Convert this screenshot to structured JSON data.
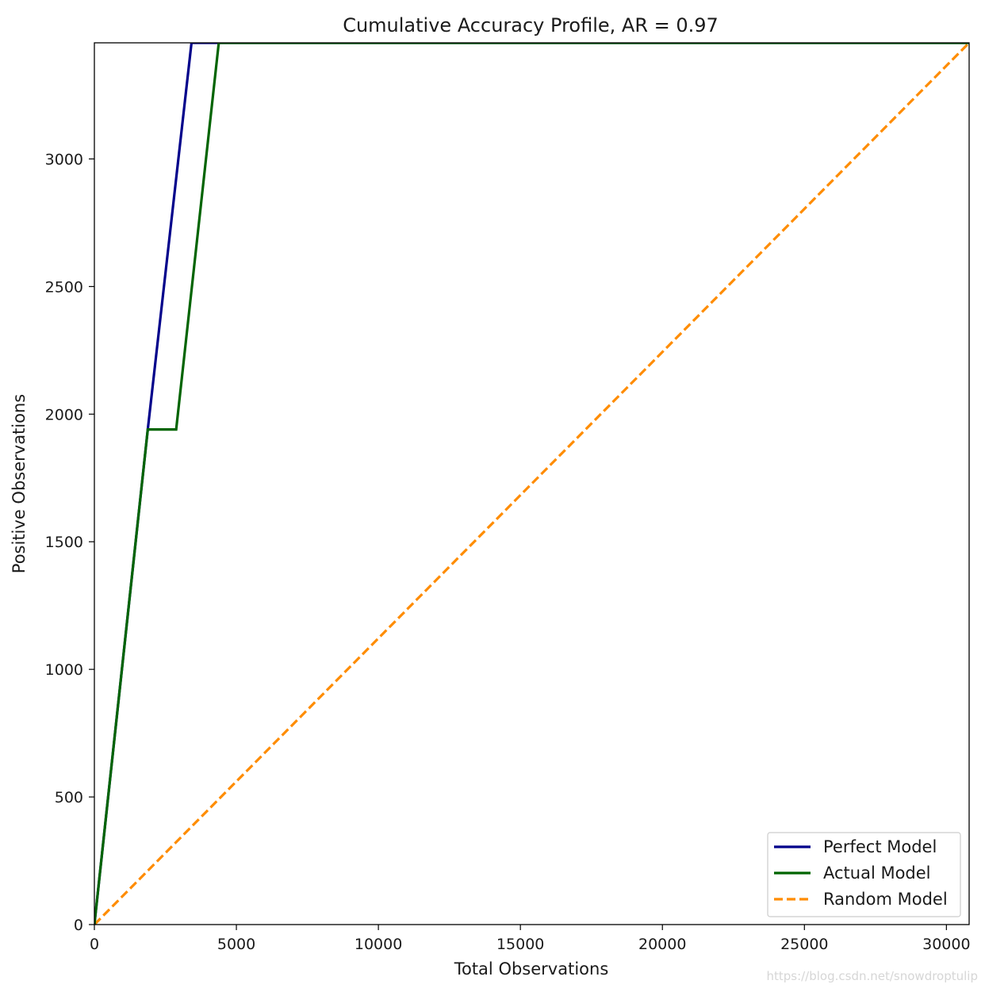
{
  "chart_data": {
    "type": "line",
    "title": "Cumulative Accuracy Profile, AR = 0.97",
    "xlabel": "Total Observations",
    "ylabel": "Positive Observations",
    "xlim": [
      0,
      30800
    ],
    "ylim": [
      0,
      3455
    ],
    "xticks": [
      0,
      5000,
      10000,
      15000,
      20000,
      25000,
      30000
    ],
    "yticks": [
      0,
      500,
      1000,
      1500,
      2000,
      2500,
      3000
    ],
    "grid": false,
    "legend_position": "lower-right",
    "series": [
      {
        "name": "Perfect Model",
        "color": "#00008b",
        "style": "solid",
        "points": [
          [
            0,
            0
          ],
          [
            1880,
            1940
          ],
          [
            3420,
            3455
          ],
          [
            30800,
            3455
          ]
        ]
      },
      {
        "name": "Actual Model",
        "color": "#006400",
        "style": "solid",
        "points": [
          [
            0,
            0
          ],
          [
            1880,
            1940
          ],
          [
            2880,
            1940
          ],
          [
            4380,
            3455
          ],
          [
            30800,
            3455
          ]
        ]
      },
      {
        "name": "Random Model",
        "color": "#ff8c00",
        "style": "dashed",
        "points": [
          [
            0,
            0
          ],
          [
            30800,
            3455
          ]
        ]
      }
    ]
  },
  "watermark": "https://blog.csdn.net/snowdroptulip"
}
